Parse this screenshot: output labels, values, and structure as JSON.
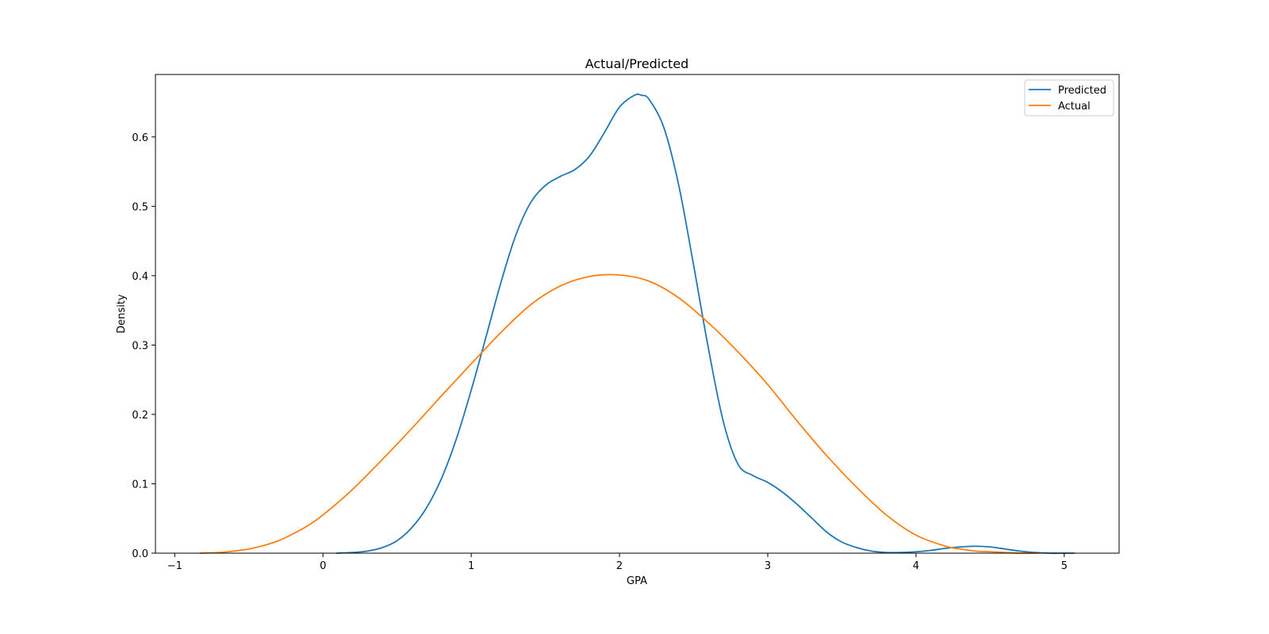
{
  "chart_data": {
    "type": "line",
    "title": "Actual/Predicted",
    "xlabel": "GPA",
    "ylabel": "Density",
    "xlim": [
      -1.13,
      5.37
    ],
    "ylim": [
      0,
      0.69
    ],
    "xticks": [
      -1,
      0,
      1,
      2,
      3,
      4,
      5
    ],
    "xtick_labels": [
      "−1",
      "0",
      "1",
      "2",
      "3",
      "4",
      "5"
    ],
    "yticks": [
      0.0,
      0.1,
      0.2,
      0.3,
      0.4,
      0.5,
      0.6
    ],
    "ytick_labels": [
      "0.0",
      "0.1",
      "0.2",
      "0.3",
      "0.4",
      "0.5",
      "0.6"
    ],
    "grid": false,
    "legend_position": "top-right",
    "series": [
      {
        "name": "Predicted",
        "color": "#1f77b4",
        "x": [
          0.09,
          0.2,
          0.3,
          0.4,
          0.5,
          0.6,
          0.7,
          0.8,
          0.9,
          1.0,
          1.1,
          1.2,
          1.3,
          1.4,
          1.5,
          1.6,
          1.7,
          1.8,
          1.9,
          2.0,
          2.1,
          2.15,
          2.2,
          2.3,
          2.4,
          2.5,
          2.6,
          2.7,
          2.8,
          2.9,
          3.0,
          3.1,
          3.2,
          3.3,
          3.4,
          3.5,
          3.6,
          3.7,
          3.8,
          3.9,
          4.0,
          4.1,
          4.2,
          4.3,
          4.4,
          4.5,
          4.6,
          4.7,
          4.8,
          4.9,
          5.0,
          5.07
        ],
        "y": [
          0.0,
          0.001,
          0.003,
          0.008,
          0.018,
          0.037,
          0.066,
          0.108,
          0.165,
          0.235,
          0.312,
          0.39,
          0.458,
          0.505,
          0.53,
          0.543,
          0.553,
          0.573,
          0.607,
          0.643,
          0.66,
          0.66,
          0.654,
          0.613,
          0.53,
          0.415,
          0.295,
          0.19,
          0.128,
          0.112,
          0.102,
          0.088,
          0.07,
          0.05,
          0.03,
          0.016,
          0.008,
          0.003,
          0.001,
          0.001,
          0.002,
          0.004,
          0.007,
          0.009,
          0.01,
          0.009,
          0.006,
          0.003,
          0.001,
          0.0,
          0.0,
          0.0
        ]
      },
      {
        "name": "Actual",
        "color": "#ff7f0e",
        "x": [
          -0.83,
          -0.7,
          -0.6,
          -0.5,
          -0.4,
          -0.3,
          -0.2,
          -0.1,
          0.0,
          0.2,
          0.4,
          0.6,
          0.8,
          1.0,
          1.2,
          1.4,
          1.6,
          1.8,
          2.0,
          2.2,
          2.4,
          2.6,
          2.8,
          3.0,
          3.2,
          3.4,
          3.6,
          3.8,
          4.0,
          4.2,
          4.3,
          4.4,
          4.5,
          4.6,
          4.7,
          4.83
        ],
        "y": [
          0.0,
          0.001,
          0.003,
          0.006,
          0.011,
          0.018,
          0.028,
          0.04,
          0.055,
          0.092,
          0.135,
          0.18,
          0.227,
          0.273,
          0.318,
          0.358,
          0.385,
          0.399,
          0.401,
          0.392,
          0.368,
          0.332,
          0.29,
          0.243,
          0.19,
          0.14,
          0.095,
          0.055,
          0.026,
          0.01,
          0.006,
          0.003,
          0.002,
          0.001,
          0.0,
          0.0
        ]
      }
    ]
  }
}
